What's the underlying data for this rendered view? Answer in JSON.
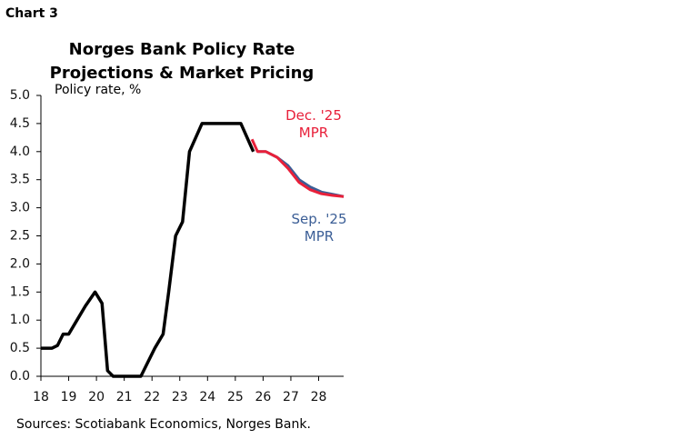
{
  "chart_data": {
    "type": "line",
    "label": "Chart 3",
    "title": "Norges Bank Policy Rate Projections & Market Pricing",
    "y_label": "Policy rate, %",
    "source": "Sources: Scotiabank Economics, Norges Bank.",
    "xlim": [
      18,
      28.9
    ],
    "xticks": [
      18,
      19,
      20,
      21,
      22,
      23,
      24,
      25,
      26,
      27,
      28
    ],
    "ylim": [
      0,
      5
    ],
    "yticks": [
      {
        "value": 0,
        "label": "0.0"
      },
      {
        "value": 0.5,
        "label": "0.5"
      },
      {
        "value": 1,
        "label": "1.0"
      },
      {
        "value": 1.5,
        "label": "1.5"
      },
      {
        "value": 2,
        "label": "2.0"
      },
      {
        "value": 2.5,
        "label": "2.5"
      },
      {
        "value": 3,
        "label": "3.0"
      },
      {
        "value": 3.5,
        "label": "3.5"
      },
      {
        "value": 4,
        "label": "4.0"
      },
      {
        "value": 4.5,
        "label": "4.5"
      },
      {
        "value": 5,
        "label": "5.0"
      }
    ],
    "series": [
      {
        "color": "#000000",
        "x": [
          18,
          18.4,
          18.6,
          18.8,
          19.0,
          19.3,
          19.6,
          19.95,
          20.2,
          20.4,
          20.6,
          21.6,
          22.1,
          22.4,
          22.6,
          22.85,
          23.1,
          23.35,
          23.8,
          25.2,
          25.65
        ],
        "values": [
          0.5,
          0.5,
          0.55,
          0.75,
          0.75,
          1.0,
          1.25,
          1.5,
          1.3,
          0.1,
          0,
          0,
          0.5,
          0.75,
          1.5,
          2.5,
          2.75,
          4.0,
          4.5,
          4.5,
          4.0
        ]
      },
      {
        "name": "Sep. '25 MPR",
        "color": "#3b5e96",
        "x": [
          25.8,
          26.1,
          26.5,
          26.9,
          27.3,
          27.7,
          28.1,
          28.5,
          28.9
        ],
        "values": [
          4.0,
          4.0,
          3.9,
          3.75,
          3.5,
          3.37,
          3.28,
          3.24,
          3.2
        ]
      },
      {
        "name": "Dec. '25 MPR",
        "color": "#e8203a",
        "x": [
          25.6,
          25.8,
          26.1,
          26.5,
          26.9,
          27.3,
          27.7,
          28.1,
          28.5,
          28.9
        ],
        "values": [
          4.22,
          4.0,
          4.0,
          3.9,
          3.7,
          3.45,
          3.32,
          3.25,
          3.22,
          3.2
        ]
      }
    ]
  }
}
